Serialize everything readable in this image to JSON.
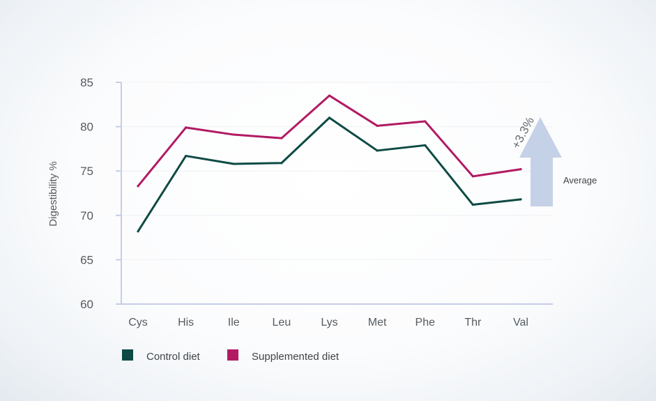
{
  "chart_data": {
    "type": "line",
    "categories": [
      "Cys",
      "His",
      "Ile",
      "Leu",
      "Lys",
      "Met",
      "Phe",
      "Thr",
      "Val"
    ],
    "series": [
      {
        "name": "Control diet",
        "color": "#0e4a44",
        "values": [
          68.2,
          76.7,
          75.8,
          75.9,
          81.0,
          77.3,
          77.9,
          71.2,
          71.8
        ]
      },
      {
        "name": "Supplemented diet",
        "color": "#b21a63",
        "values": [
          73.3,
          79.9,
          79.1,
          78.7,
          83.5,
          80.1,
          80.6,
          74.4,
          75.2
        ]
      }
    ],
    "ylabel": "Digestibility %",
    "ylim": [
      60,
      85
    ],
    "yticks": [
      60,
      65,
      70,
      75,
      80,
      85
    ],
    "grid": true,
    "legend_position": "bottom-left",
    "annotation": {
      "text": "+3.3%",
      "label": "Average",
      "arrow_color": "#c5d1e6",
      "icon": "up-arrow-icon"
    },
    "axis_color": "#c5cde8"
  }
}
